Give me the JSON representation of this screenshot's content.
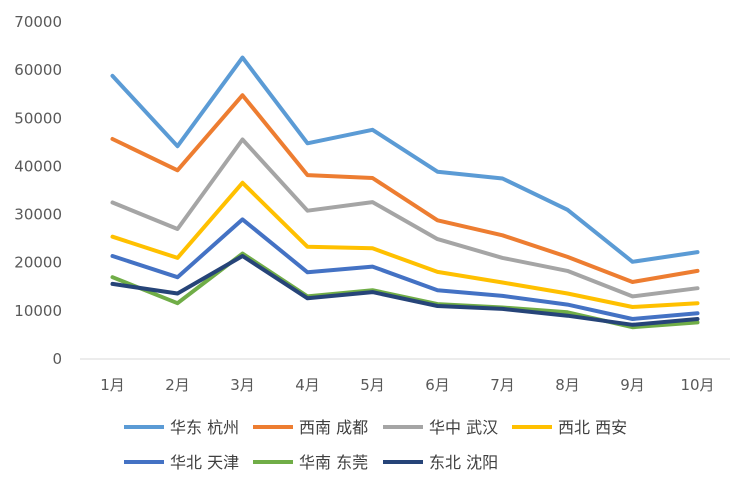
{
  "chart_data": {
    "type": "line",
    "title": "",
    "xlabel": "",
    "ylabel": "",
    "categories": [
      "1月",
      "2月",
      "3月",
      "4月",
      "5月",
      "6月",
      "7月",
      "8月",
      "9月",
      "10月"
    ],
    "ylim": [
      0,
      70000
    ],
    "yticks": [
      "0",
      "10000",
      "20000",
      "30000",
      "40000",
      "50000",
      "60000",
      "70000"
    ],
    "grid": false,
    "legend": "bottom",
    "series": [
      {
        "name": "华东 杭州",
        "color": "#5B9BD5",
        "values": [
          58800,
          44200,
          62600,
          44800,
          47600,
          38900,
          37500,
          31000,
          20200,
          22200
        ]
      },
      {
        "name": "西南 成都",
        "color": "#ED7D31",
        "values": [
          45700,
          39200,
          54800,
          38200,
          37600,
          28800,
          25700,
          21200,
          16000,
          18300
        ]
      },
      {
        "name": "华中 武汉",
        "color": "#A5A5A5",
        "values": [
          32500,
          27000,
          45600,
          30800,
          32600,
          24900,
          21000,
          18300,
          13000,
          14700
        ]
      },
      {
        "name": "西北 西安",
        "color": "#FFC000",
        "values": [
          25400,
          21000,
          36600,
          23300,
          23000,
          18100,
          15900,
          13600,
          10800,
          11600
        ]
      },
      {
        "name": "华北 天津",
        "color": "#4472C4",
        "values": [
          21400,
          17000,
          29000,
          18000,
          19200,
          14300,
          13100,
          11300,
          8300,
          9500
        ]
      },
      {
        "name": "华南 东莞",
        "color": "#70AD47",
        "values": [
          17000,
          11600,
          21900,
          13000,
          14300,
          11400,
          10700,
          9700,
          6600,
          7600
        ]
      },
      {
        "name": "东北 沈阳",
        "color": "#264478",
        "values": [
          15600,
          13600,
          21400,
          12600,
          13900,
          11000,
          10400,
          9000,
          7100,
          8300
        ]
      }
    ]
  }
}
